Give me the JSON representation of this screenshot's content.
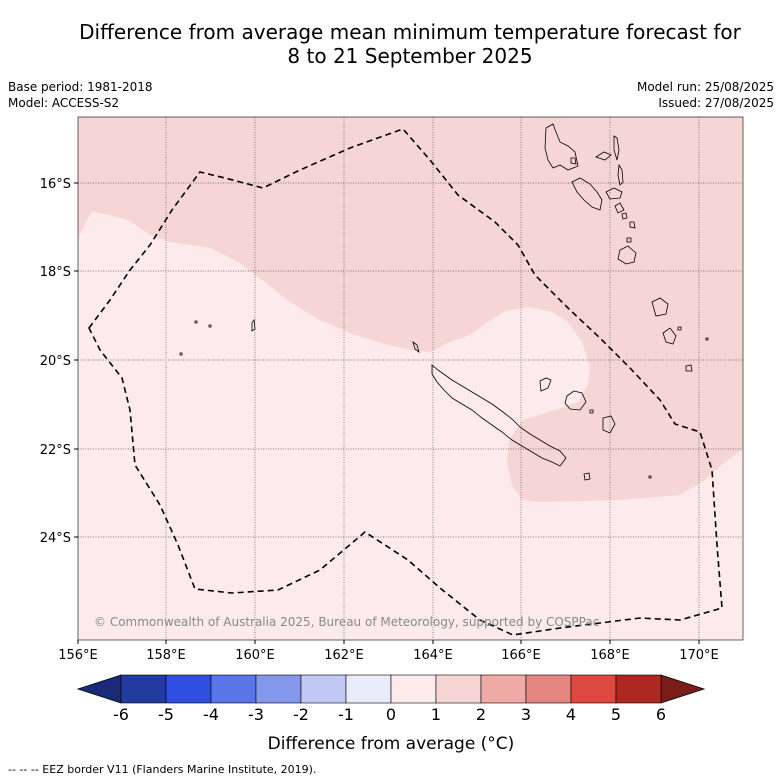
{
  "header": {
    "title_line1": "Difference from average mean minimum temperature forecast for",
    "title_line2": "8 to 21 September 2025",
    "base_period": "Base period: 1981-2018",
    "model": "Model: ACCESS-S2",
    "model_run": "Model run: 25/08/2025",
    "issued": "Issued: 27/08/2025"
  },
  "map": {
    "lon_range": [
      156,
      171
    ],
    "lat_range": [
      -26.2,
      -14.5
    ],
    "lon_ticks": [
      "156°E",
      "158°E",
      "160°E",
      "162°E",
      "164°E",
      "166°E",
      "168°E",
      "170°E"
    ],
    "lat_ticks": [
      "16°S",
      "18°S",
      "20°S",
      "22°S",
      "24°S"
    ],
    "grid": true,
    "copyright": "© Commonwealth of Australia 2025, Bureau of Meteorology, supported by COSPPac",
    "categories_shown": [
      "0 to 1",
      "1 to 2"
    ],
    "colors": {
      "cat_0_1": "#fcebea",
      "cat_1_2": "#f5d6d4"
    }
  },
  "colorbar": {
    "tick_labels": [
      "-6",
      "-5",
      "-4",
      "-3",
      "-2",
      "-1",
      "0",
      "1",
      "2",
      "3",
      "4",
      "5",
      "6"
    ],
    "colors": [
      "#233b9e",
      "#2f4fe0",
      "#5a75e6",
      "#8497eb",
      "#c0c8f3",
      "#e9ecfb",
      "#fcebea",
      "#f5d6d4",
      "#efaaa5",
      "#e68680",
      "#dd483f",
      "#ad2821"
    ],
    "under_color": "#1a2a78",
    "over_color": "#7a1c18",
    "label": "Difference from average (°C)"
  },
  "footer": "--  --  -- EEZ border V11 (Flanders Marine Institute, 2019)."
}
